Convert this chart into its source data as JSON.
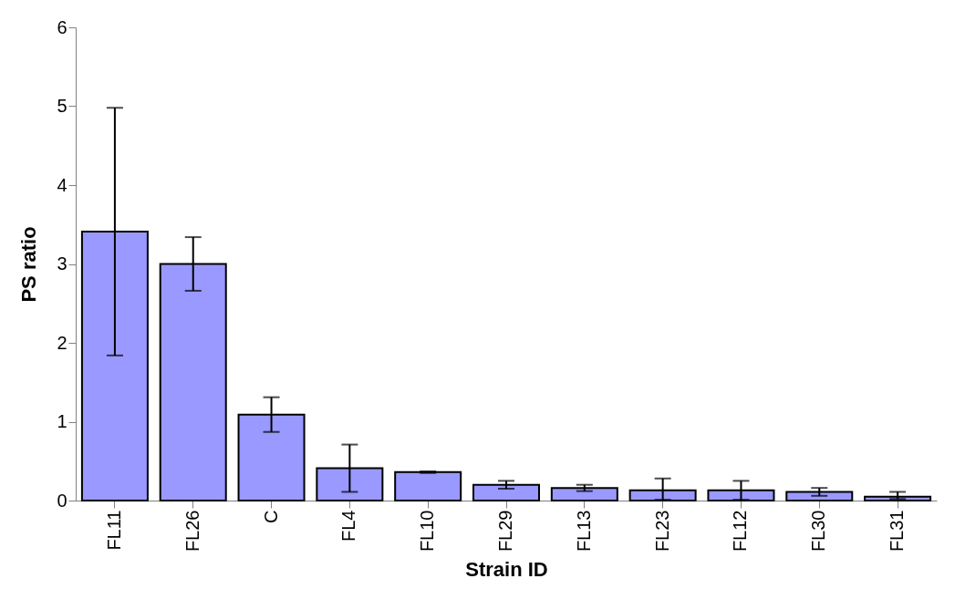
{
  "chart_data": {
    "type": "bar",
    "xlabel": "Strain ID",
    "ylabel": "PS ratio",
    "categories": [
      "FL11",
      "FL26",
      "C",
      "FL4",
      "FL10",
      "FL29",
      "FL13",
      "FL23",
      "FL12",
      "FL30",
      "FL31"
    ],
    "values": [
      3.41,
      3.0,
      1.09,
      0.41,
      0.36,
      0.2,
      0.16,
      0.13,
      0.13,
      0.11,
      0.05
    ],
    "errors": [
      1.57,
      0.34,
      0.22,
      0.3,
      0.01,
      0.05,
      0.04,
      [
        0.01,
        0.28
      ],
      0.12,
      0.05,
      [
        0.02,
        0.11
      ]
    ],
    "color": "#9999ff",
    "ylim": [
      0,
      6
    ],
    "yticks": [
      0,
      1,
      2,
      3,
      4,
      5,
      6
    ],
    "grid": false
  }
}
